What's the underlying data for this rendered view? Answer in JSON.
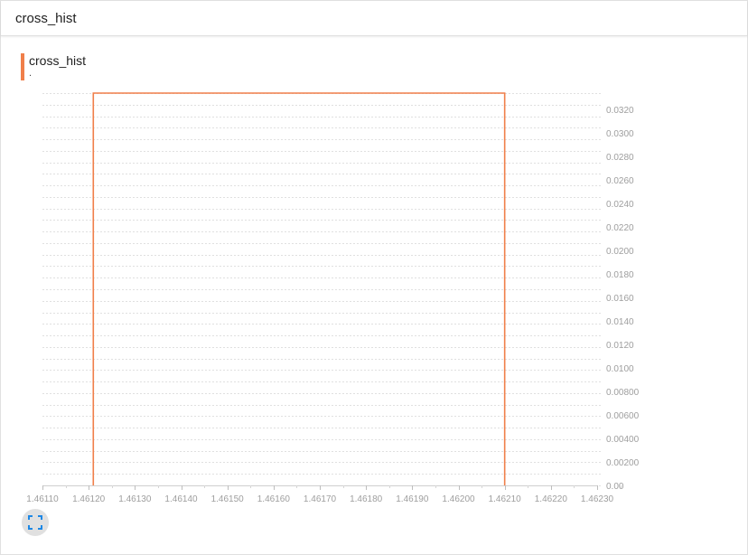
{
  "header": {
    "title": "cross_hist"
  },
  "legend": {
    "name": "cross_hist",
    "sub": "."
  },
  "colors": {
    "series": "#f07f4a",
    "grid": "#e0e0e0",
    "tick": "#9e9e9e"
  },
  "controls": {
    "expand_icon": "fullscreen-icon"
  },
  "chart_data": {
    "type": "area",
    "series": [
      {
        "x": [
          1.46121,
          1.4621
        ],
        "y": [
          0.0334,
          0.0334
        ]
      }
    ],
    "xlim": [
      1.4611,
      1.4623
    ],
    "ylim": [
      0,
      0.0334
    ],
    "x_ticks": [
      "1.46110",
      "1.46120",
      "1.46130",
      "1.46140",
      "1.46150",
      "1.46160",
      "1.46170",
      "1.46180",
      "1.46190",
      "1.46200",
      "1.46210",
      "1.46220",
      "1.46230"
    ],
    "y_ticks": [
      {
        "v": 0.032,
        "label": "0.0320"
      },
      {
        "v": 0.03,
        "label": "0.0300"
      },
      {
        "v": 0.028,
        "label": "0.0280"
      },
      {
        "v": 0.026,
        "label": "0.0260"
      },
      {
        "v": 0.024,
        "label": "0.0240"
      },
      {
        "v": 0.022,
        "label": "0.0220"
      },
      {
        "v": 0.02,
        "label": "0.0200"
      },
      {
        "v": 0.018,
        "label": "0.0180"
      },
      {
        "v": 0.016,
        "label": "0.0160"
      },
      {
        "v": 0.014,
        "label": "0.0140"
      },
      {
        "v": 0.012,
        "label": "0.0120"
      },
      {
        "v": 0.01,
        "label": "0.0100"
      },
      {
        "v": 0.008,
        "label": "0.00800"
      },
      {
        "v": 0.006,
        "label": "0.00600"
      },
      {
        "v": 0.004,
        "label": "0.00400"
      },
      {
        "v": 0.002,
        "label": "0.00200"
      },
      {
        "v": 0.0,
        "label": "0.00"
      }
    ],
    "grid": true
  }
}
